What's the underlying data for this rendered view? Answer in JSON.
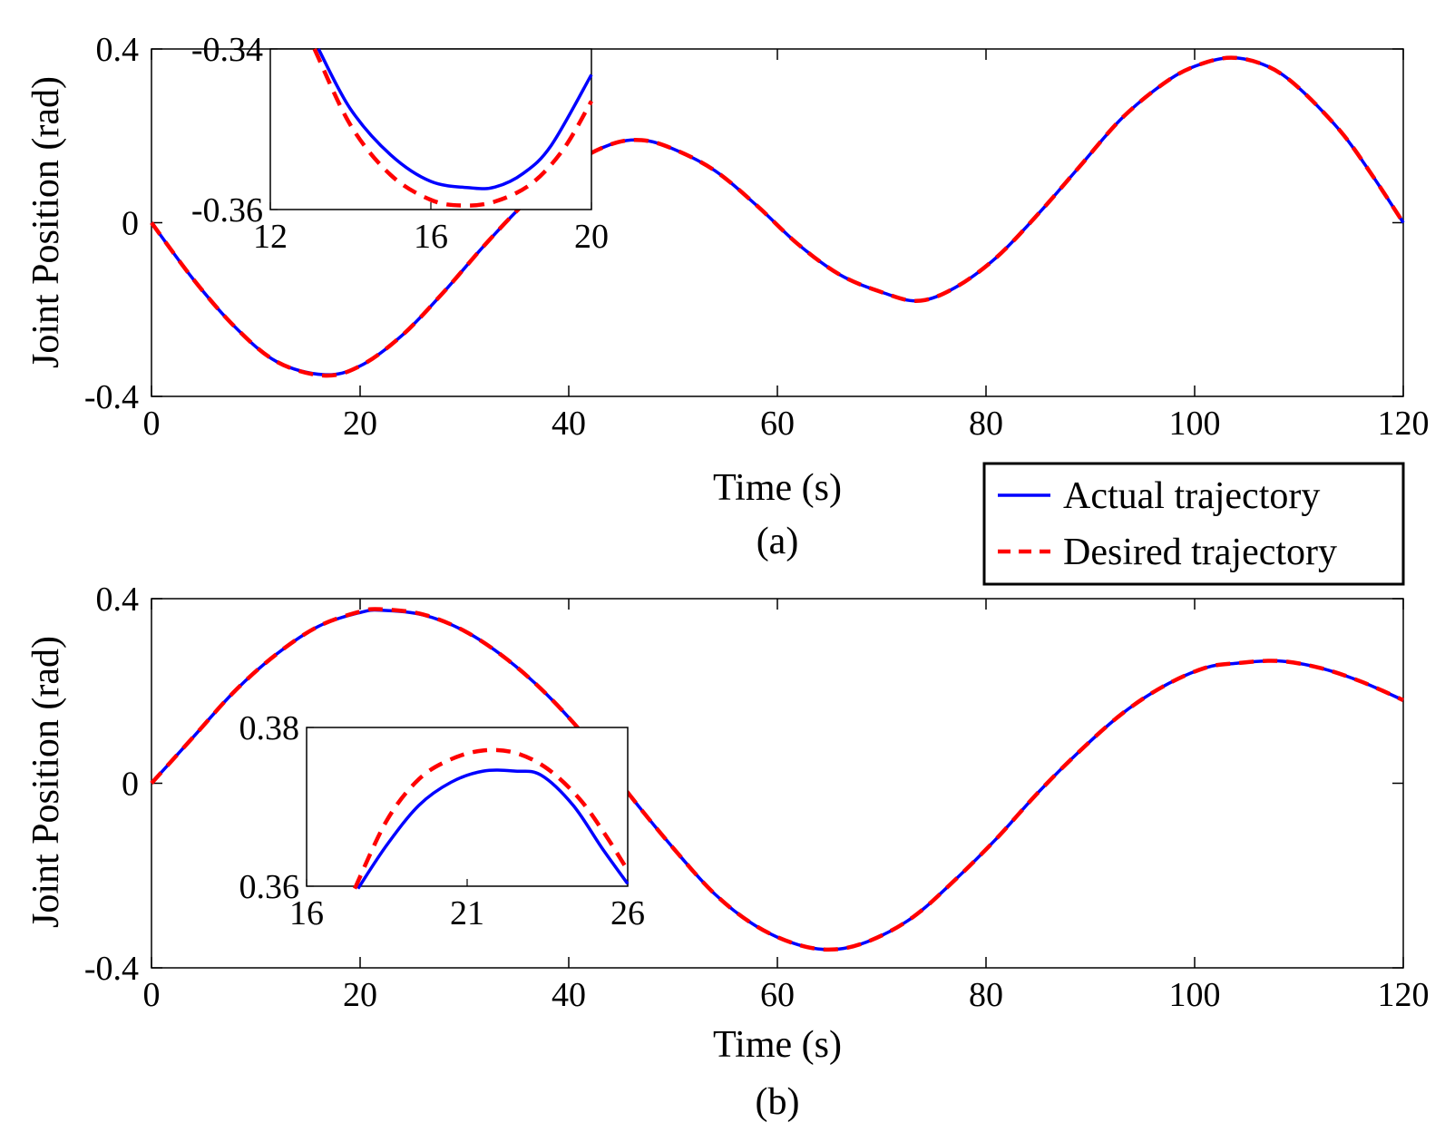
{
  "legend": {
    "entries": [
      {
        "label": "Actual trajectory",
        "color": "#0000ff",
        "style": "solid"
      },
      {
        "label": "Desired trajectory",
        "color": "#ff0000",
        "style": "dashed"
      }
    ]
  },
  "chart_data": [
    {
      "id": "a",
      "type": "line",
      "caption": "(a)",
      "xlabel": "Time (s)",
      "ylabel": "Joint Position (rad)",
      "xlim": [
        0,
        120
      ],
      "ylim": [
        -0.4,
        0.4
      ],
      "xticks": [
        0,
        20,
        40,
        60,
        80,
        100,
        120
      ],
      "yticks": [
        -0.4,
        0,
        0.4
      ],
      "ytick_labels": [
        "-0.4",
        "0",
        "0.4"
      ],
      "xtick_labels": [
        "0",
        "20",
        "40",
        "60",
        "80",
        "100",
        "120"
      ],
      "series": [
        {
          "name": "Actual trajectory",
          "color": "#0000ff",
          "x": [
            0,
            4,
            8,
            12,
            16.5,
            20,
            24,
            28,
            32,
            36,
            40,
            44,
            47,
            50,
            54,
            58,
            62,
            66,
            70,
            73.5,
            77,
            81,
            85,
            89,
            93,
            97,
            100,
            103.5,
            107,
            110,
            114,
            117,
            120
          ],
          "y": [
            0,
            -0.13,
            -0.24,
            -0.32,
            -0.35,
            -0.33,
            -0.26,
            -0.16,
            -0.05,
            0.05,
            0.13,
            0.18,
            0.19,
            0.17,
            0.12,
            0.04,
            -0.05,
            -0.12,
            -0.16,
            -0.18,
            -0.15,
            -0.08,
            0.02,
            0.13,
            0.24,
            0.32,
            0.36,
            0.38,
            0.36,
            0.31,
            0.21,
            0.11,
            0
          ]
        },
        {
          "name": "Desired trajectory",
          "color": "#ff0000",
          "x": [
            0,
            4,
            8,
            12,
            16.5,
            20,
            24,
            28,
            32,
            36,
            40,
            44,
            47,
            50,
            54,
            58,
            62,
            66,
            70,
            73.5,
            77,
            81,
            85,
            89,
            93,
            97,
            100,
            103.5,
            107,
            110,
            114,
            117,
            120
          ],
          "y": [
            0,
            -0.13,
            -0.24,
            -0.32,
            -0.352,
            -0.33,
            -0.26,
            -0.16,
            -0.05,
            0.05,
            0.13,
            0.18,
            0.19,
            0.17,
            0.12,
            0.04,
            -0.05,
            -0.12,
            -0.16,
            -0.18,
            -0.15,
            -0.08,
            0.02,
            0.13,
            0.24,
            0.32,
            0.36,
            0.38,
            0.36,
            0.31,
            0.21,
            0.11,
            0
          ]
        }
      ],
      "inset": {
        "xlim": [
          12,
          20
        ],
        "ylim": [
          -0.36,
          -0.34
        ],
        "xticks": [
          12,
          16,
          20
        ],
        "yticks": [
          -0.36,
          -0.34
        ],
        "xtick_labels": [
          "12",
          "16",
          "20"
        ],
        "ytick_labels": [
          "-0.36",
          "-0.34"
        ],
        "series": [
          {
            "name": "Actual trajectory",
            "color": "#0000ff",
            "x": [
              13.2,
              14,
              15,
              16,
              17,
              17.6,
              18.3,
              19,
              20
            ],
            "y": [
              -0.34,
              -0.3475,
              -0.3532,
              -0.3565,
              -0.3573,
              -0.3572,
              -0.3555,
              -0.352,
              -0.3432
            ]
          },
          {
            "name": "Desired trajectory",
            "color": "#ff0000",
            "x": [
              13.1,
              14,
              15,
              16,
              16.8,
              17.6,
              18.5,
              19.3,
              20
            ],
            "y": [
              -0.34,
              -0.3495,
              -0.3557,
              -0.3588,
              -0.3595,
              -0.359,
              -0.3568,
              -0.3525,
              -0.3465
            ]
          }
        ]
      }
    },
    {
      "id": "b",
      "type": "line",
      "caption": "(b)",
      "xlabel": "Time (s)",
      "ylabel": "Joint Position (rad)",
      "xlim": [
        0,
        120
      ],
      "ylim": [
        -0.4,
        0.4
      ],
      "xticks": [
        0,
        20,
        40,
        60,
        80,
        100,
        120
      ],
      "yticks": [
        -0.4,
        0,
        0.4
      ],
      "ytick_labels": [
        "-0.4",
        "0",
        "0.4"
      ],
      "xtick_labels": [
        "0",
        "20",
        "40",
        "60",
        "80",
        "100",
        "120"
      ],
      "series": [
        {
          "name": "Actual trajectory",
          "color": "#0000ff",
          "x": [
            0,
            4,
            8,
            12,
            16,
            20,
            22,
            26,
            30,
            34,
            38,
            42,
            46,
            50,
            54,
            58,
            62,
            65.5,
            69,
            73,
            77,
            81,
            85,
            89,
            93,
            97,
            101,
            104,
            108,
            112,
            116,
            120
          ],
          "y": [
            0,
            0.1,
            0.2,
            0.28,
            0.34,
            0.37,
            0.375,
            0.365,
            0.33,
            0.27,
            0.19,
            0.09,
            -0.03,
            -0.14,
            -0.24,
            -0.31,
            -0.35,
            -0.36,
            -0.34,
            -0.29,
            -0.21,
            -0.12,
            -0.02,
            0.07,
            0.15,
            0.21,
            0.25,
            0.26,
            0.265,
            0.25,
            0.22,
            0.18
          ]
        },
        {
          "name": "Desired trajectory",
          "color": "#ff0000",
          "x": [
            0,
            4,
            8,
            12,
            16,
            20,
            22,
            26,
            30,
            34,
            38,
            42,
            46,
            50,
            54,
            58,
            62,
            65.5,
            69,
            73,
            77,
            81,
            85,
            89,
            93,
            97,
            101,
            104,
            108,
            112,
            116,
            120
          ],
          "y": [
            0,
            0.1,
            0.2,
            0.28,
            0.34,
            0.372,
            0.377,
            0.366,
            0.33,
            0.27,
            0.19,
            0.09,
            -0.03,
            -0.14,
            -0.24,
            -0.31,
            -0.35,
            -0.36,
            -0.34,
            -0.29,
            -0.21,
            -0.12,
            -0.02,
            0.07,
            0.15,
            0.21,
            0.25,
            0.26,
            0.265,
            0.25,
            0.22,
            0.18
          ]
        }
      ],
      "inset": {
        "xlim": [
          16,
          26
        ],
        "ylim": [
          0.36,
          0.38
        ],
        "xticks": [
          16,
          21,
          26
        ],
        "yticks": [
          0.36,
          0.38
        ],
        "xtick_labels": [
          "16",
          "21",
          "26"
        ],
        "ytick_labels": [
          "0.36",
          "0.38"
        ],
        "series": [
          {
            "name": "Actual trajectory",
            "color": "#0000ff",
            "x": [
              17.6,
              18.5,
              19.5,
              20.5,
              21.5,
              22.5,
              23.3,
              24.3,
              25.2,
              26
            ],
            "y": [
              0.3597,
              0.3652,
              0.3702,
              0.3731,
              0.3745,
              0.3745,
              0.374,
              0.3702,
              0.3648,
              0.3603
            ]
          },
          {
            "name": "Desired trajectory",
            "color": "#ff0000",
            "x": [
              17.5,
              18.5,
              19.5,
              20.5,
              21.5,
              22.5,
              23.5,
              24.5,
              25.3,
              26
            ],
            "y": [
              0.3597,
              0.3683,
              0.3735,
              0.376,
              0.3771,
              0.3768,
              0.3748,
              0.371,
              0.3665,
              0.362
            ]
          }
        ]
      }
    }
  ]
}
